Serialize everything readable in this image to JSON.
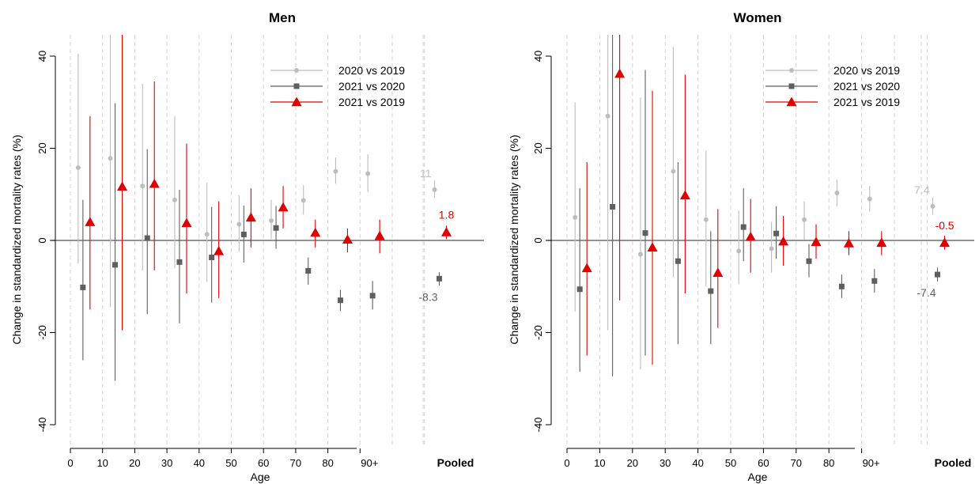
{
  "chart_data": [
    {
      "type": "scatter",
      "title": "Men",
      "xlabel": "Age",
      "ylabel": "Change in standardized mortality rates (%)",
      "ylim": [
        -40,
        40
      ],
      "yticks": [
        -40,
        -20,
        0,
        20,
        40
      ],
      "x_tick_labels": [
        "0",
        "10",
        "20",
        "30",
        "40",
        "50",
        "60",
        "70",
        "80",
        "90+"
      ],
      "pooled_label": "Pooled",
      "grid": "vertical dashed",
      "legend_position": "top-right",
      "series": [
        {
          "name": "2020 vs 2019",
          "color": "#bdbdbd",
          "marker": "circle",
          "points": [
            {
              "age_group": "0-9",
              "y": 15.8,
              "lo": -5,
              "hi": 40.5
            },
            {
              "age_group": "10-19",
              "y": 17.8,
              "lo": -14.5,
              "hi": 45
            },
            {
              "age_group": "20-29",
              "y": 11.8,
              "lo": -6.5,
              "hi": 34
            },
            {
              "age_group": "30-39",
              "y": 8.8,
              "lo": -6,
              "hi": 27
            },
            {
              "age_group": "40-49",
              "y": 1.3,
              "lo": -9,
              "hi": 12.5
            },
            {
              "age_group": "50-59",
              "y": 3.5,
              "lo": -2.5,
              "hi": 9.8
            },
            {
              "age_group": "60-69",
              "y": 4.3,
              "lo": 0.3,
              "hi": 8.8
            },
            {
              "age_group": "70-79",
              "y": 8.7,
              "lo": 5.6,
              "hi": 12
            },
            {
              "age_group": "80-89",
              "y": 15,
              "lo": 12.3,
              "hi": 18
            },
            {
              "age_group": "90+",
              "y": 14.5,
              "lo": 10.5,
              "hi": 18.7
            },
            {
              "age_group": "Pooled",
              "y": 11,
              "lo": 9.2,
              "hi": 13
            }
          ]
        },
        {
          "name": "2021 vs 2020",
          "color": "#5f5f5f",
          "marker": "square",
          "points": [
            {
              "age_group": "0-9",
              "y": -10.2,
              "lo": -26,
              "hi": 8.8
            },
            {
              "age_group": "10-19",
              "y": -5.3,
              "lo": -30.5,
              "hi": 29.8
            },
            {
              "age_group": "20-29",
              "y": 0.5,
              "lo": -16,
              "hi": 19.8
            },
            {
              "age_group": "30-39",
              "y": -4.7,
              "lo": -18,
              "hi": 11
            },
            {
              "age_group": "40-49",
              "y": -3.7,
              "lo": -13.5,
              "hi": 7.3
            },
            {
              "age_group": "50-59",
              "y": 1.3,
              "lo": -4.8,
              "hi": 7.6
            },
            {
              "age_group": "60-69",
              "y": 2.7,
              "lo": -1.8,
              "hi": 7.5
            },
            {
              "age_group": "70-79",
              "y": -6.6,
              "lo": -9.6,
              "hi": -3.7
            },
            {
              "age_group": "80-89",
              "y": -13,
              "lo": -15.3,
              "hi": -10.7
            },
            {
              "age_group": "90+",
              "y": -12,
              "lo": -15,
              "hi": -8.8
            },
            {
              "age_group": "Pooled",
              "y": -8.3,
              "lo": -9.8,
              "hi": -6.9
            }
          ]
        },
        {
          "name": "2021 vs 2019",
          "color": "#e00000",
          "marker": "triangle",
          "points": [
            {
              "age_group": "0-9",
              "y": 4,
              "lo": -15,
              "hi": 27
            },
            {
              "age_group": "10-19",
              "y": 11.7,
              "lo": -19.5,
              "hi": 45
            },
            {
              "age_group": "20-29",
              "y": 12.3,
              "lo": -6.5,
              "hi": 34.5
            },
            {
              "age_group": "30-39",
              "y": 3.8,
              "lo": -11.5,
              "hi": 21
            },
            {
              "age_group": "40-49",
              "y": -2.3,
              "lo": -12.5,
              "hi": 8.5
            },
            {
              "age_group": "50-59",
              "y": 5,
              "lo": -1.5,
              "hi": 11.3
            },
            {
              "age_group": "60-69",
              "y": 7.2,
              "lo": 2.6,
              "hi": 11.8
            },
            {
              "age_group": "70-79",
              "y": 1.7,
              "lo": -1.5,
              "hi": 4.5
            },
            {
              "age_group": "80-89",
              "y": 0.2,
              "lo": -2.6,
              "hi": 2.6
            },
            {
              "age_group": "90+",
              "y": 1,
              "lo": -2.8,
              "hi": 4.5
            },
            {
              "age_group": "Pooled",
              "y": 1.8,
              "lo": 0.3,
              "hi": 3.2
            }
          ]
        }
      ],
      "annotations": [
        {
          "text": "11",
          "series": "2020 vs 2019"
        },
        {
          "text": "1.8",
          "series": "2021 vs 2019"
        },
        {
          "text": "-8.3",
          "series": "2021 vs 2020"
        }
      ]
    },
    {
      "type": "scatter",
      "title": "Women",
      "xlabel": "Age",
      "ylabel": "Change in standardized mortality rates (%)",
      "ylim": [
        -40,
        40
      ],
      "yticks": [
        -40,
        -20,
        0,
        20,
        40
      ],
      "x_tick_labels": [
        "0",
        "10",
        "20",
        "30",
        "40",
        "50",
        "60",
        "70",
        "80",
        "90+"
      ],
      "pooled_label": "Pooled",
      "grid": "vertical dashed",
      "legend_position": "top-right",
      "series": [
        {
          "name": "2020 vs 2019",
          "color": "#bdbdbd",
          "marker": "circle",
          "points": [
            {
              "age_group": "0-9",
              "y": 5,
              "lo": -15.5,
              "hi": 30
            },
            {
              "age_group": "10-19",
              "y": 27,
              "lo": -19.5,
              "hi": 45
            },
            {
              "age_group": "20-29",
              "y": -3,
              "lo": -28,
              "hi": 31
            },
            {
              "age_group": "30-39",
              "y": 15,
              "lo": -8,
              "hi": 42
            },
            {
              "age_group": "40-49",
              "y": 4.5,
              "lo": -10,
              "hi": 19.5
            },
            {
              "age_group": "50-59",
              "y": -2.3,
              "lo": -9.5,
              "hi": 6.5
            },
            {
              "age_group": "60-69",
              "y": -1.8,
              "lo": -7,
              "hi": 4
            },
            {
              "age_group": "70-79",
              "y": 4.5,
              "lo": 0.2,
              "hi": 8.5
            },
            {
              "age_group": "80-89",
              "y": 10.3,
              "lo": 7.4,
              "hi": 13.2
            },
            {
              "age_group": "90+",
              "y": 9,
              "lo": 6.3,
              "hi": 11.8
            },
            {
              "age_group": "Pooled",
              "y": 7.4,
              "lo": 5.6,
              "hi": 9.3
            }
          ]
        },
        {
          "name": "2021 vs 2020",
          "color": "#5f5f5f",
          "marker": "square",
          "points": [
            {
              "age_group": "0-9",
              "y": -10.6,
              "lo": -28.5,
              "hi": 11.3
            },
            {
              "age_group": "10-19",
              "y": 7.3,
              "lo": -29.5,
              "hi": 45
            },
            {
              "age_group": "20-29",
              "y": 1.6,
              "lo": -25,
              "hi": 37
            },
            {
              "age_group": "30-39",
              "y": -4.5,
              "lo": -22.5,
              "hi": 17
            },
            {
              "age_group": "40-49",
              "y": -11,
              "lo": -22.5,
              "hi": 2
            },
            {
              "age_group": "50-59",
              "y": 2.9,
              "lo": -4.5,
              "hi": 11.3
            },
            {
              "age_group": "60-69",
              "y": 1.5,
              "lo": -4,
              "hi": 7.4
            },
            {
              "age_group": "70-79",
              "y": -4.5,
              "lo": -8,
              "hi": -0.8
            },
            {
              "age_group": "80-89",
              "y": -10,
              "lo": -12.5,
              "hi": -7.4
            },
            {
              "age_group": "90+",
              "y": -8.8,
              "lo": -11.3,
              "hi": -6.2
            },
            {
              "age_group": "Pooled",
              "y": -7.4,
              "lo": -8.9,
              "hi": -5.9
            }
          ]
        },
        {
          "name": "2021 vs 2019",
          "color": "#e00000",
          "marker": "triangle",
          "points": [
            {
              "age_group": "0-9",
              "y": -6,
              "lo": -25,
              "hi": 17
            },
            {
              "age_group": "10-19",
              "y": 36.2,
              "lo": -13,
              "hi": 45
            },
            {
              "age_group": "20-29",
              "y": -1.5,
              "lo": -27,
              "hi": 32.5
            },
            {
              "age_group": "30-39",
              "y": 9.8,
              "lo": -11.5,
              "hi": 36
            },
            {
              "age_group": "40-49",
              "y": -7,
              "lo": -19,
              "hi": 6.8
            },
            {
              "age_group": "50-59",
              "y": 0.8,
              "lo": -7,
              "hi": 9
            },
            {
              "age_group": "60-69",
              "y": -0.2,
              "lo": -5.5,
              "hi": 5.3
            },
            {
              "age_group": "70-79",
              "y": -0.3,
              "lo": -4,
              "hi": 3.5
            },
            {
              "age_group": "80-89",
              "y": -0.6,
              "lo": -3.2,
              "hi": 2
            },
            {
              "age_group": "90+",
              "y": -0.5,
              "lo": -3.2,
              "hi": 2
            },
            {
              "age_group": "Pooled",
              "y": -0.5,
              "lo": -2,
              "hi": 1
            }
          ]
        }
      ],
      "annotations": [
        {
          "text": "7.4",
          "series": "2020 vs 2019"
        },
        {
          "text": "-0.5",
          "series": "2021 vs 2019"
        },
        {
          "text": "-7.4",
          "series": "2021 vs 2020"
        }
      ]
    }
  ]
}
